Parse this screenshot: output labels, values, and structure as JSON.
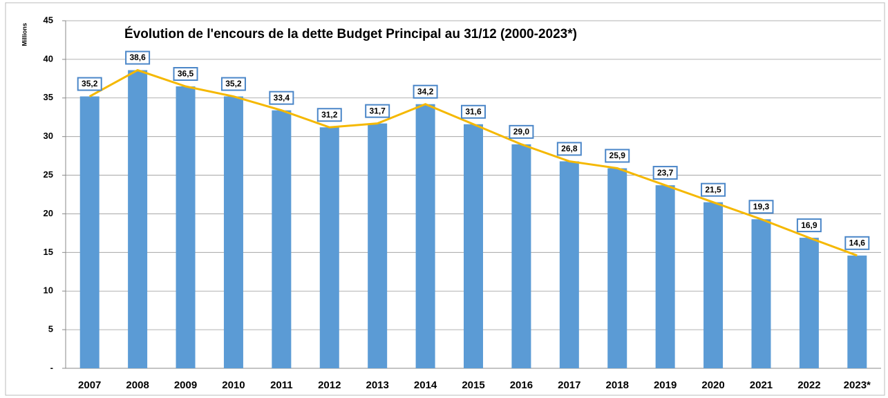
{
  "chart_data": {
    "type": "bar",
    "title": "Évolution de l'encours de la dette Budget Principal au 31/12 (2000-2023*)",
    "y_axis_label": "Millions",
    "categories": [
      "2007",
      "2008",
      "2009",
      "2010",
      "2011",
      "2012",
      "2013",
      "2014",
      "2015",
      "2016",
      "2017",
      "2018",
      "2019",
      "2020",
      "2021",
      "2022",
      "2023*"
    ],
    "values": [
      35.2,
      38.6,
      36.5,
      35.2,
      33.4,
      31.2,
      31.7,
      34.2,
      31.6,
      29.0,
      26.8,
      25.9,
      23.7,
      21.5,
      19.3,
      16.9,
      14.6
    ],
    "value_labels": [
      "35,2",
      "38,6",
      "36,5",
      "35,2",
      "33,4",
      "31,2",
      "31,7",
      "34,2",
      "31,6",
      "29,0",
      "26,8",
      "25,9",
      "23,7",
      "21,5",
      "19,3",
      "16,9",
      "14,6"
    ],
    "color": "#5b9bd5",
    "line_overlay": true,
    "line_color": "#f5b800",
    "label_border_color": "#4a86c8",
    "ylim": [
      0,
      45
    ],
    "yticks": [
      {
        "value": 0,
        "label": "-"
      },
      5,
      10,
      15,
      20,
      25,
      30,
      35,
      40,
      45
    ],
    "grid": true
  }
}
